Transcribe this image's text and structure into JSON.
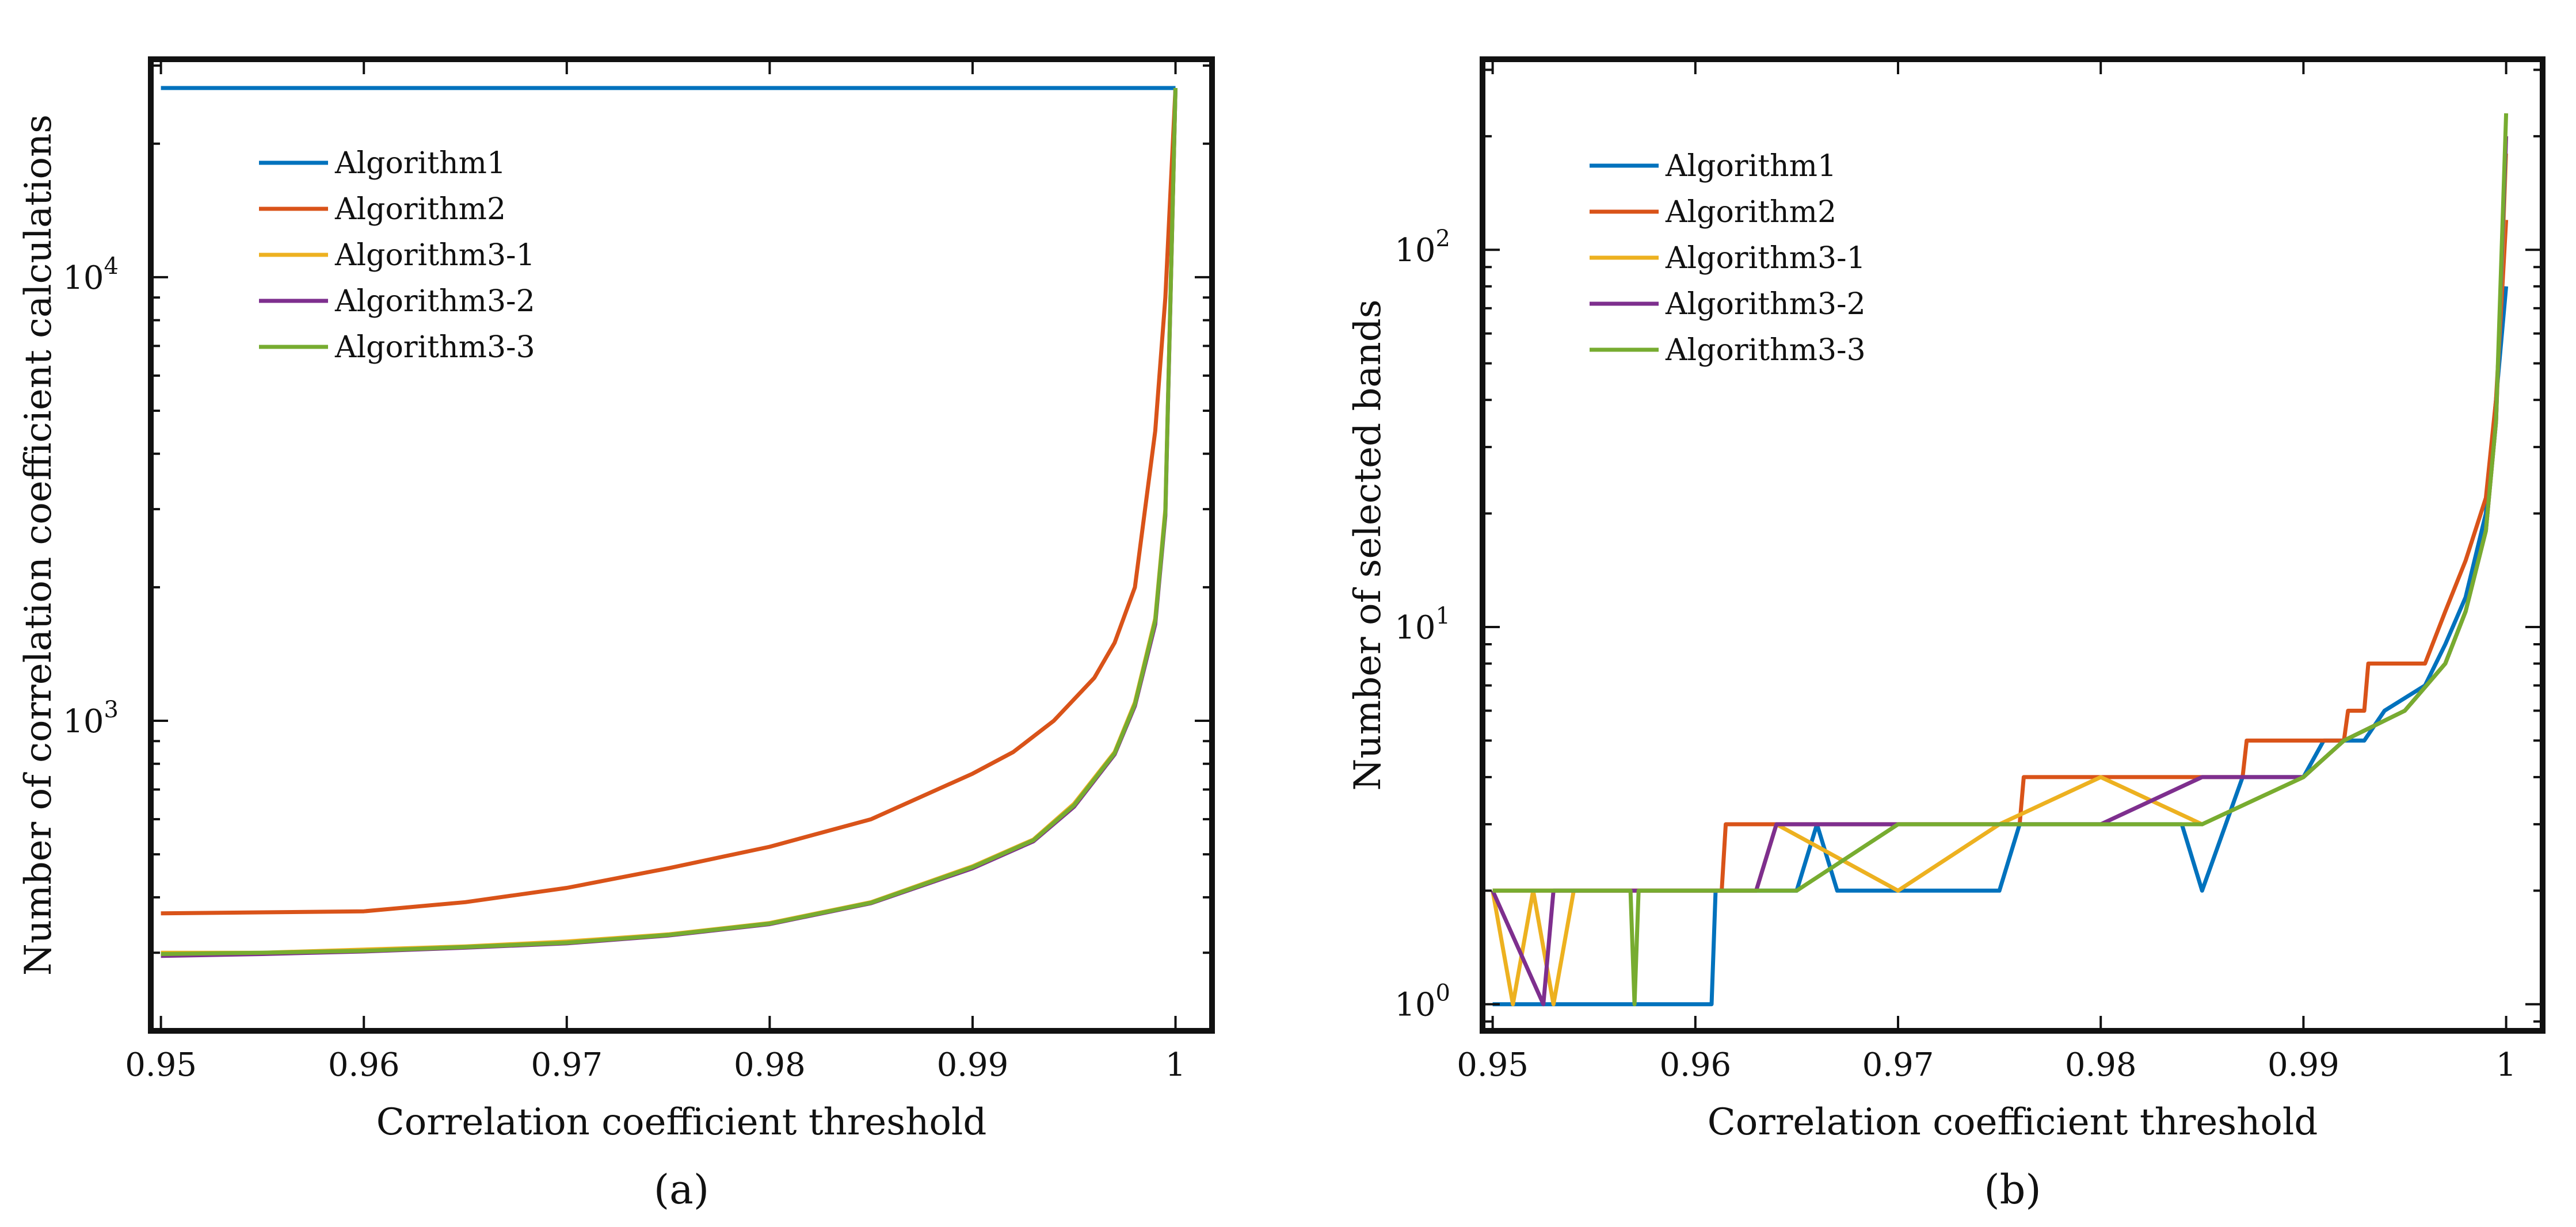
{
  "chart_data": [
    {
      "type": "line",
      "panel_label": "(a)",
      "title": "",
      "xlabel": "Correlation coefficient threshold",
      "ylabel": "Number of correlation coefficient calculations",
      "yscale": "log",
      "xlim": [
        0.9495,
        1.0018
      ],
      "ylim": [
        200,
        31000
      ],
      "xticks": [
        0.95,
        0.96,
        0.97,
        0.98,
        0.99,
        1.0
      ],
      "xtick_labels": [
        "0.95",
        "0.96",
        "0.97",
        "0.98",
        "0.99",
        "1"
      ],
      "yticks": [
        1000,
        10000
      ],
      "ytick_exponents": [
        "3",
        "4"
      ],
      "ytick_base": "10",
      "legend_position": "upper-left",
      "series": [
        {
          "name": "Algorithm1",
          "color": "#0072BD",
          "points": [
            [
              0.95,
              26700
            ],
            [
              1.0,
              26700
            ]
          ]
        },
        {
          "name": "Algorithm2",
          "color": "#D95319",
          "points": [
            [
              0.95,
              368
            ],
            [
              0.955,
              370
            ],
            [
              0.96,
              372
            ],
            [
              0.965,
              390
            ],
            [
              0.97,
              420
            ],
            [
              0.975,
              465
            ],
            [
              0.98,
              520
            ],
            [
              0.985,
              600
            ],
            [
              0.99,
              760
            ],
            [
              0.992,
              850
            ],
            [
              0.994,
              1000
            ],
            [
              0.996,
              1250
            ],
            [
              0.997,
              1500
            ],
            [
              0.998,
              2000
            ],
            [
              0.999,
              4500
            ],
            [
              0.9995,
              9000
            ],
            [
              1.0,
              26700
            ]
          ]
        },
        {
          "name": "Algorithm3-1",
          "color": "#EDB120",
          "points": [
            [
              0.95,
              300
            ],
            [
              0.955,
              300
            ],
            [
              0.96,
              305
            ],
            [
              0.965,
              310
            ],
            [
              0.97,
              318
            ],
            [
              0.975,
              330
            ],
            [
              0.98,
              350
            ],
            [
              0.985,
              390
            ],
            [
              0.99,
              470
            ],
            [
              0.993,
              540
            ],
            [
              0.995,
              650
            ],
            [
              0.997,
              850
            ],
            [
              0.998,
              1100
            ],
            [
              0.999,
              1700
            ],
            [
              0.9995,
              3000
            ],
            [
              1.0,
              26700
            ]
          ]
        },
        {
          "name": "Algorithm3-2",
          "color": "#7E2F8E",
          "points": [
            [
              0.95,
              295
            ],
            [
              0.955,
              298
            ],
            [
              0.96,
              302
            ],
            [
              0.965,
              308
            ],
            [
              0.97,
              315
            ],
            [
              0.975,
              328
            ],
            [
              0.98,
              348
            ],
            [
              0.985,
              388
            ],
            [
              0.99,
              465
            ],
            [
              0.993,
              535
            ],
            [
              0.995,
              640
            ],
            [
              0.997,
              840
            ],
            [
              0.998,
              1080
            ],
            [
              0.999,
              1650
            ],
            [
              0.9995,
              2900
            ],
            [
              1.0,
              26700
            ]
          ]
        },
        {
          "name": "Algorithm3-3",
          "color": "#77AC30",
          "points": [
            [
              0.95,
              298
            ],
            [
              0.955,
              300
            ],
            [
              0.96,
              303
            ],
            [
              0.965,
              309
            ],
            [
              0.97,
              316
            ],
            [
              0.975,
              329
            ],
            [
              0.98,
              349
            ],
            [
              0.985,
              389
            ],
            [
              0.99,
              468
            ],
            [
              0.993,
              538
            ],
            [
              0.995,
              645
            ],
            [
              0.997,
              845
            ],
            [
              0.998,
              1090
            ],
            [
              0.999,
              1680
            ],
            [
              0.9995,
              2950
            ],
            [
              1.0,
              26700
            ]
          ]
        }
      ]
    },
    {
      "type": "line",
      "panel_label": "(b)",
      "title": "",
      "xlabel": "Correlation coefficient threshold",
      "ylabel": "Number of selected bands",
      "yscale": "log",
      "xlim": [
        0.9495,
        1.0018
      ],
      "ylim": [
        0.85,
        320
      ],
      "xticks": [
        0.95,
        0.96,
        0.97,
        0.98,
        0.99,
        1.0
      ],
      "xtick_labels": [
        "0.95",
        "0.96",
        "0.97",
        "0.98",
        "0.99",
        "1"
      ],
      "yticks": [
        1,
        10,
        100
      ],
      "ytick_exponents": [
        "0",
        "1",
        "2"
      ],
      "ytick_base": "10",
      "legend_position": "upper-left",
      "series": [
        {
          "name": "Algorithm1",
          "color": "#0072BD",
          "points": [
            [
              0.95,
              1
            ],
            [
              0.9608,
              1
            ],
            [
              0.961,
              2
            ],
            [
              0.965,
              2
            ],
            [
              0.966,
              3
            ],
            [
              0.967,
              2
            ],
            [
              0.975,
              2
            ],
            [
              0.976,
              3
            ],
            [
              0.984,
              3
            ],
            [
              0.985,
              2
            ],
            [
              0.987,
              4
            ],
            [
              0.99,
              4
            ],
            [
              0.991,
              5
            ],
            [
              0.993,
              5
            ],
            [
              0.994,
              6
            ],
            [
              0.996,
              7
            ],
            [
              0.997,
              9
            ],
            [
              0.998,
              12
            ],
            [
              0.999,
              20
            ],
            [
              0.9995,
              40
            ],
            [
              1.0,
              80
            ]
          ]
        },
        {
          "name": "Algorithm2",
          "color": "#D95319",
          "points": [
            [
              0.95,
              2
            ],
            [
              0.9613,
              2
            ],
            [
              0.9615,
              3
            ],
            [
              0.976,
              3
            ],
            [
              0.9762,
              4
            ],
            [
              0.987,
              4
            ],
            [
              0.9872,
              5
            ],
            [
              0.992,
              5
            ],
            [
              0.9922,
              6
            ],
            [
              0.993,
              6
            ],
            [
              0.9932,
              8
            ],
            [
              0.996,
              8
            ],
            [
              0.997,
              11
            ],
            [
              0.998,
              15
            ],
            [
              0.999,
              22
            ],
            [
              0.9995,
              40
            ],
            [
              1.0,
              120
            ]
          ]
        },
        {
          "name": "Algorithm3-1",
          "color": "#EDB120",
          "points": [
            [
              0.95,
              2
            ],
            [
              0.951,
              1
            ],
            [
              0.952,
              2
            ],
            [
              0.953,
              1
            ],
            [
              0.954,
              2
            ],
            [
              0.963,
              2
            ],
            [
              0.964,
              3
            ],
            [
              0.97,
              2
            ],
            [
              0.975,
              3
            ],
            [
              0.98,
              4
            ],
            [
              0.985,
              3
            ],
            [
              0.99,
              4
            ],
            [
              0.992,
              5
            ],
            [
              0.995,
              6
            ],
            [
              0.997,
              8
            ],
            [
              0.998,
              11
            ],
            [
              0.999,
              18
            ],
            [
              0.9995,
              35
            ],
            [
              1.0,
              180
            ]
          ]
        },
        {
          "name": "Algorithm3-2",
          "color": "#7E2F8E",
          "points": [
            [
              0.95,
              2
            ],
            [
              0.9525,
              1
            ],
            [
              0.953,
              2
            ],
            [
              0.963,
              2
            ],
            [
              0.964,
              3
            ],
            [
              0.97,
              3
            ],
            [
              0.975,
              3
            ],
            [
              0.98,
              3
            ],
            [
              0.985,
              4
            ],
            [
              0.99,
              4
            ],
            [
              0.992,
              5
            ],
            [
              0.995,
              6
            ],
            [
              0.997,
              8
            ],
            [
              0.998,
              11
            ],
            [
              0.999,
              18
            ],
            [
              0.9995,
              35
            ],
            [
              1.0,
              200
            ]
          ]
        },
        {
          "name": "Algorithm3-3",
          "color": "#77AC30",
          "points": [
            [
              0.95,
              2
            ],
            [
              0.9568,
              2
            ],
            [
              0.957,
              1
            ],
            [
              0.9572,
              2
            ],
            [
              0.965,
              2
            ],
            [
              0.97,
              3
            ],
            [
              0.975,
              3
            ],
            [
              0.98,
              3
            ],
            [
              0.985,
              3
            ],
            [
              0.99,
              4
            ],
            [
              0.992,
              5
            ],
            [
              0.995,
              6
            ],
            [
              0.997,
              8
            ],
            [
              0.998,
              11
            ],
            [
              0.999,
              18
            ],
            [
              0.9995,
              35
            ],
            [
              1.0,
              230
            ]
          ]
        }
      ]
    }
  ]
}
